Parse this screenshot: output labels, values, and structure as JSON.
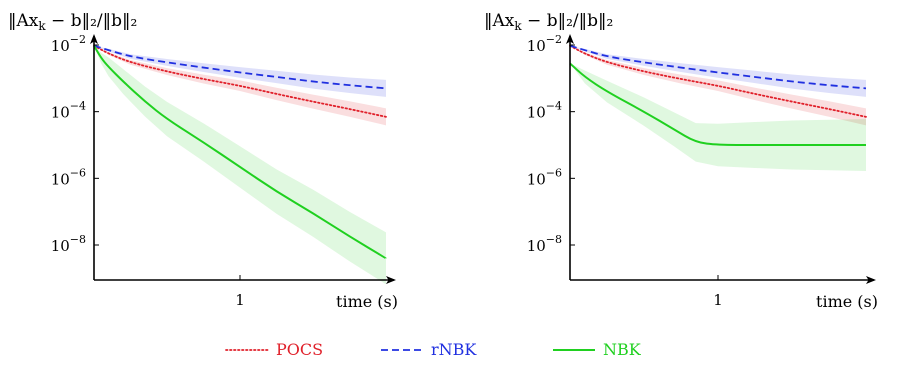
{
  "chart_data": [
    {
      "type": "line",
      "title": "‖Ax_k − b‖₂/‖b‖₂",
      "xlabel": "time (s)",
      "ylabel": "",
      "yscale": "log",
      "xlim": [
        0,
        2
      ],
      "ylim": [
        1e-09,
        0.01
      ],
      "xticks": [
        1
      ],
      "yticks": [
        {
          "base": "10",
          "exp": "−2"
        },
        {
          "base": "10",
          "exp": "−4"
        },
        {
          "base": "10",
          "exp": "−6"
        },
        {
          "base": "10",
          "exp": "−8"
        }
      ],
      "grid": false,
      "bands": true,
      "series": [
        {
          "name": "POCS",
          "color": "#e0202a",
          "style": "dotted",
          "x": [
            0,
            0.1,
            0.25,
            0.5,
            0.75,
            1.0,
            1.25,
            1.5,
            1.75,
            2.0
          ],
          "y": [
            0.0095,
            0.0055,
            0.003,
            0.0016,
            0.00095,
            0.0006,
            0.00034,
            0.0002,
            0.00012,
            7e-05
          ]
        },
        {
          "name": "rNBK",
          "color": "#2030e0",
          "style": "dashed",
          "x": [
            0,
            0.1,
            0.25,
            0.5,
            0.75,
            1.0,
            1.25,
            1.5,
            1.75,
            2.0
          ],
          "y": [
            0.0095,
            0.007,
            0.0045,
            0.003,
            0.0021,
            0.0015,
            0.0011,
            0.0008,
            0.00062,
            0.0005
          ]
        },
        {
          "name": "NBK",
          "color": "#20d020",
          "style": "solid",
          "x": [
            0,
            0.05,
            0.1,
            0.2,
            0.35,
            0.5,
            0.75,
            1.0,
            1.25,
            1.5,
            1.75,
            2.0
          ],
          "y": [
            0.0095,
            0.004,
            0.0022,
            0.0008,
            0.0002,
            6e-05,
            1.2e-05,
            2.2e-06,
            4e-07,
            9e-08,
            1.8e-08,
            4e-09
          ]
        }
      ]
    },
    {
      "type": "line",
      "title": "‖Ax_k − b‖₂/‖b‖₂",
      "xlabel": "time (s)",
      "ylabel": "",
      "yscale": "log",
      "xlim": [
        0,
        2
      ],
      "ylim": [
        1e-09,
        0.01
      ],
      "xticks": [
        1
      ],
      "yticks": [
        {
          "base": "10",
          "exp": "−2"
        },
        {
          "base": "10",
          "exp": "−4"
        },
        {
          "base": "10",
          "exp": "−6"
        },
        {
          "base": "10",
          "exp": "−8"
        }
      ],
      "grid": false,
      "bands": true,
      "series": [
        {
          "name": "POCS",
          "color": "#e0202a",
          "style": "dotted",
          "x": [
            0,
            0.1,
            0.25,
            0.5,
            0.75,
            1.0,
            1.25,
            1.5,
            1.75,
            2.0
          ],
          "y": [
            0.0095,
            0.0055,
            0.003,
            0.0016,
            0.00095,
            0.0006,
            0.00034,
            0.0002,
            0.00012,
            7e-05
          ]
        },
        {
          "name": "rNBK",
          "color": "#2030e0",
          "style": "dashed",
          "x": [
            0,
            0.1,
            0.25,
            0.5,
            0.75,
            1.0,
            1.25,
            1.5,
            1.75,
            2.0
          ],
          "y": [
            0.0095,
            0.007,
            0.0045,
            0.003,
            0.0021,
            0.0015,
            0.0011,
            0.0008,
            0.00062,
            0.0005
          ]
        },
        {
          "name": "NBK",
          "color": "#20d020",
          "style": "solid",
          "x": [
            0,
            0.1,
            0.25,
            0.5,
            0.7,
            0.85,
            1.0,
            1.25,
            1.5,
            2.0
          ],
          "y": [
            0.0028,
            0.0011,
            0.0004,
            0.0001,
            3e-05,
            1.2e-05,
            1e-05,
            1e-05,
            1e-05,
            1e-05
          ]
        }
      ]
    }
  ],
  "legend": {
    "placement": "bottom-center",
    "items": [
      {
        "label": "POCS",
        "color": "#e0202a",
        "style": "dotted"
      },
      {
        "label": "rNBK",
        "color": "#2030e0",
        "style": "dashed"
      },
      {
        "label": "NBK",
        "color": "#20d020",
        "style": "solid"
      }
    ]
  }
}
